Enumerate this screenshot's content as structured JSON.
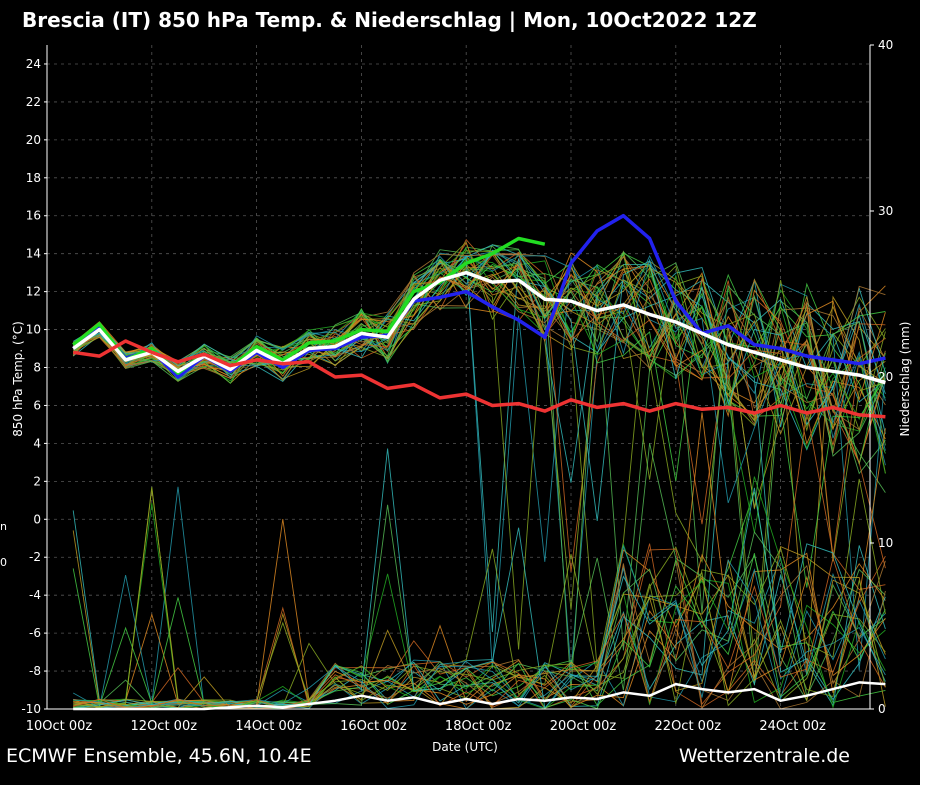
{
  "header": {
    "title": "Brescia  (IT)  850 hPa Temp. & Niederschlag | Mon, 10Oct2022 12Z"
  },
  "footer": {
    "source": "ECMWF Ensemble, 45.6N, 10.4E",
    "site": "Wetterzentrale.de"
  },
  "side_fragments": [
    "n",
    "0"
  ],
  "chart_data": {
    "type": "line",
    "title": "Brescia  (IT)  850 hPa Temp. & Niederschlag | Mon, 10Oct2022 12Z",
    "xlabel": "Date (UTC)",
    "ylabel": "850 hPa Temp. (°C)",
    "y2label": "Niederschlag (mm)",
    "x_range": [
      "2022-10-10 00z",
      "2022-10-26 06z"
    ],
    "x_ticks": [
      "10Oct 00z",
      "12Oct 00z",
      "14Oct 00z",
      "16Oct 00z",
      "18Oct 00z",
      "20Oct 00z",
      "22Oct 00z",
      "24Oct 00z"
    ],
    "ylim": [
      -10,
      25
    ],
    "y_ticks": [
      -10,
      -8,
      -6,
      -4,
      -2,
      0,
      2,
      4,
      6,
      8,
      10,
      12,
      14,
      16,
      18,
      20,
      22,
      24
    ],
    "y2lim": [
      0,
      40
    ],
    "y2_ticks": [
      0,
      10,
      20,
      30,
      40
    ],
    "grid": true,
    "x_days": [
      0.5,
      1,
      1.5,
      2,
      2.5,
      3,
      3.5,
      4,
      4.5,
      5,
      5.5,
      6,
      6.5,
      7,
      7.5,
      8,
      8.5,
      9,
      9.5,
      10,
      10.5,
      11,
      11.5,
      12,
      12.5,
      13,
      13.5,
      14,
      14.5,
      15,
      15.5,
      16
    ],
    "series": [
      {
        "role": "operational-temperature",
        "color": "#2222ee",
        "values": [
          9.0,
          10.1,
          8.5,
          8.9,
          7.5,
          8.6,
          7.8,
          8.8,
          8.0,
          8.9,
          9.0,
          9.6,
          9.7,
          11.5,
          11.7,
          12.0,
          11.2,
          10.5,
          9.6,
          13.5,
          15.2,
          16.0,
          14.8,
          11.5,
          9.8,
          10.2,
          9.2,
          9.0,
          8.6,
          8.4,
          8.2,
          8.5
        ]
      },
      {
        "role": "control-temperature",
        "color": "#22dd22",
        "values": [
          9.2,
          10.3,
          8.4,
          9.0,
          7.7,
          8.7,
          8.0,
          9.1,
          8.4,
          9.3,
          9.4,
          10.0,
          9.9,
          12.0,
          12.5,
          13.5,
          14.0,
          14.8,
          14.5
        ]
      },
      {
        "role": "ensemble-mean-temperature",
        "color": "#ffffff",
        "values": [
          9.0,
          10.0,
          8.4,
          8.8,
          7.8,
          8.6,
          7.9,
          8.9,
          8.2,
          9.0,
          9.1,
          9.8,
          9.6,
          11.6,
          12.6,
          13.0,
          12.5,
          12.6,
          11.6,
          11.5,
          11.0,
          11.3,
          10.8,
          10.4,
          9.8,
          9.2,
          8.8,
          8.4,
          8.0,
          7.8,
          7.6,
          7.2
        ]
      },
      {
        "role": "climatology-temperature",
        "color": "#ee3333",
        "values": [
          8.8,
          8.6,
          9.4,
          8.8,
          8.3,
          8.7,
          8.1,
          8.4,
          8.2,
          8.3,
          7.5,
          7.6,
          6.9,
          7.1,
          6.4,
          6.6,
          6.0,
          6.1,
          5.7,
          6.3,
          5.9,
          6.1,
          5.7,
          6.1,
          5.8,
          5.9,
          5.6,
          6.0,
          5.6,
          5.9,
          5.5,
          5.4
        ]
      },
      {
        "role": "mean-precipitation",
        "color": "#ffffff",
        "values": [
          0,
          0,
          0,
          0,
          0,
          0,
          0.1,
          0.2,
          0.1,
          0.3,
          0.5,
          0.8,
          0.5,
          0.7,
          0.3,
          0.6,
          0.3,
          0.6,
          0.5,
          0.7,
          0.6,
          1.0,
          0.8,
          1.5,
          1.2,
          1.0,
          1.2,
          0.5,
          0.8,
          1.2,
          1.6,
          1.5
        ]
      }
    ]
  }
}
